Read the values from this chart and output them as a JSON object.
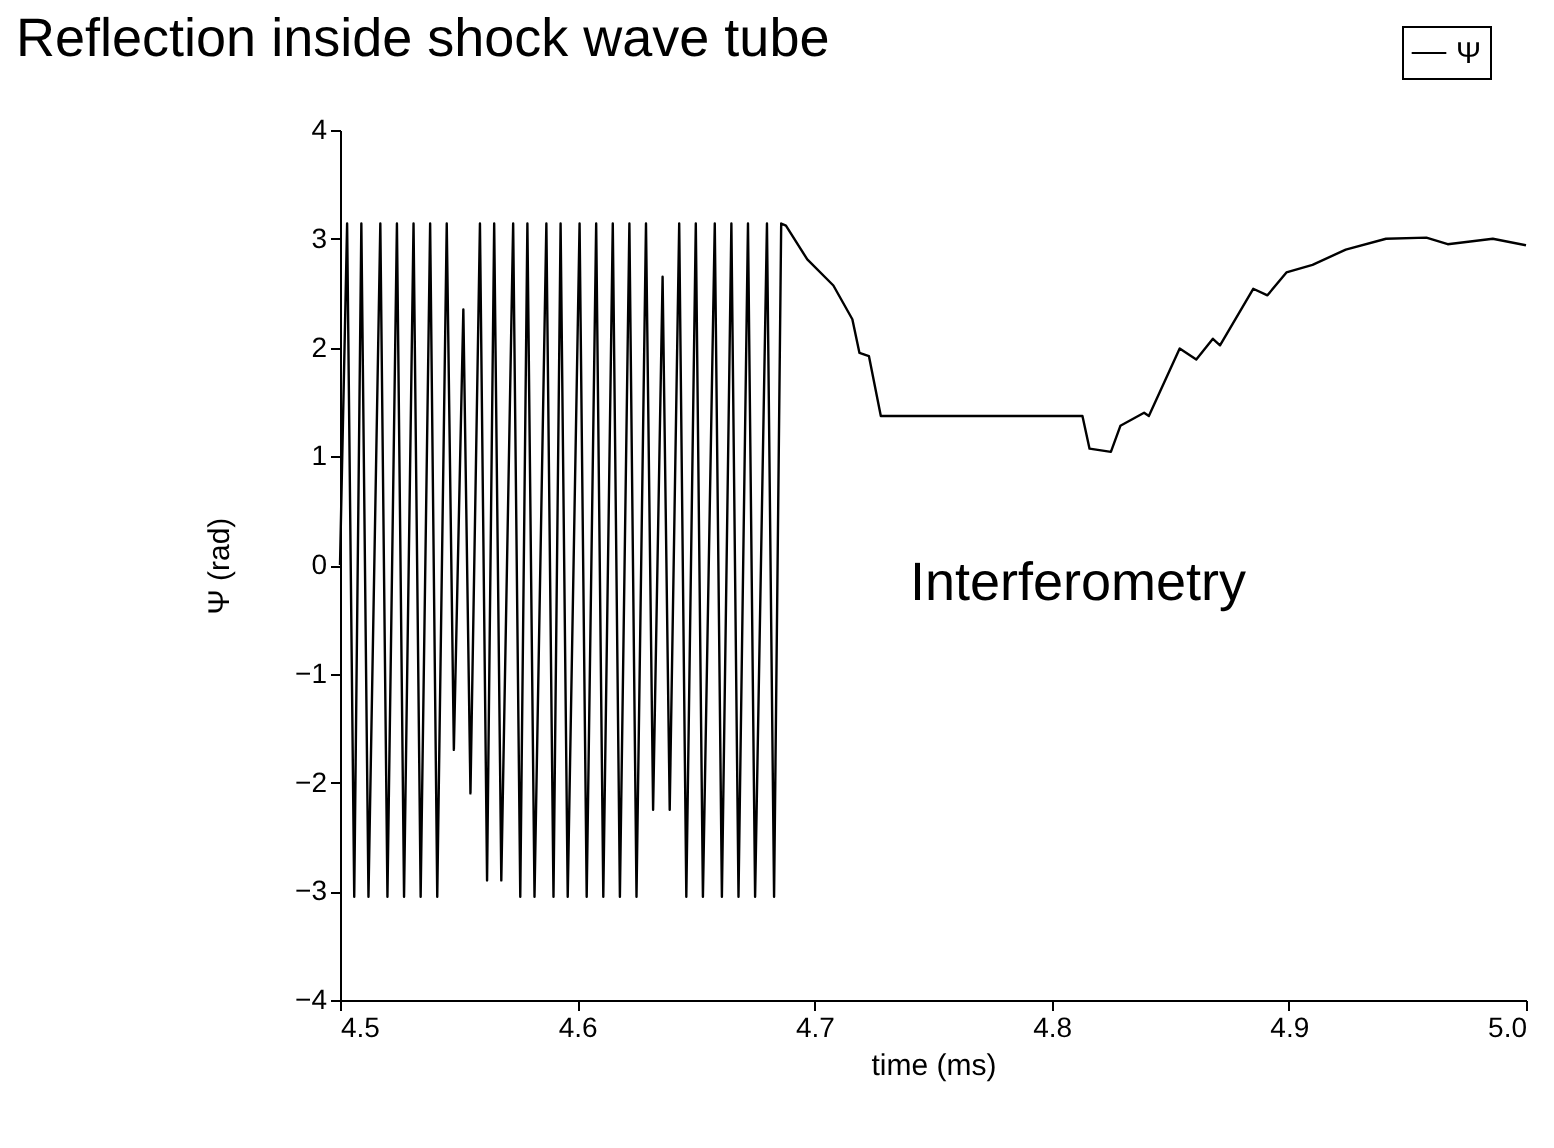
{
  "chart_data": {
    "type": "line",
    "title": "Reflection inside shock wave tube",
    "xlabel": "time (ms)",
    "ylabel": "Ψ (rad)",
    "annotations": [
      "Interferometry"
    ],
    "x": [
      4.5,
      4.503,
      4.506,
      4.509,
      4.512,
      4.517,
      4.52,
      4.524,
      4.527,
      4.531,
      4.534,
      4.538,
      4.541,
      4.545,
      4.548,
      4.552,
      4.555,
      4.559,
      4.562,
      4.565,
      4.568,
      4.573,
      4.576,
      4.579,
      4.582,
      4.587,
      4.59,
      4.593,
      4.596,
      4.601,
      4.604,
      4.608,
      4.611,
      4.615,
      4.618,
      4.622,
      4.625,
      4.629,
      4.632,
      4.636,
      4.639,
      4.643,
      4.646,
      4.65,
      4.653,
      4.658,
      4.661,
      4.665,
      4.668,
      4.672,
      4.675,
      4.68,
      4.683,
      4.686,
      4.688,
      4.697,
      4.708,
      4.716,
      4.719,
      4.723,
      4.728,
      4.813,
      4.816,
      4.825,
      4.829,
      4.839,
      4.841,
      4.854,
      4.861,
      4.868,
      4.871,
      4.885,
      4.891,
      4.899,
      4.91,
      4.924,
      4.941,
      4.958,
      4.967,
      4.986,
      5.0
    ],
    "series": [
      {
        "name": "Ψ",
        "color": "#000000",
        "values": [
          0,
          3.14,
          -3.05,
          3.14,
          -3.05,
          3.14,
          -3.05,
          3.14,
          -3.05,
          3.14,
          -3.05,
          3.14,
          -3.05,
          3.14,
          -1.7,
          2.35,
          -2.1,
          3.14,
          -2.9,
          3.14,
          -2.9,
          3.14,
          -3.05,
          3.14,
          -3.05,
          3.14,
          -3.05,
          3.14,
          -3.05,
          3.14,
          -3.05,
          3.14,
          -3.05,
          3.14,
          -3.05,
          3.14,
          -3.05,
          3.14,
          -2.25,
          2.65,
          -2.25,
          3.14,
          -3.05,
          3.14,
          -3.05,
          3.14,
          -3.05,
          3.14,
          -3.05,
          3.14,
          -3.05,
          3.14,
          -3.05,
          3.14,
          3.12,
          2.81,
          2.57,
          2.26,
          1.95,
          1.92,
          1.37,
          1.37,
          1.07,
          1.04,
          1.28,
          1.4,
          1.37,
          1.99,
          1.89,
          2.08,
          2.02,
          2.54,
          2.48,
          2.69,
          2.76,
          2.9,
          3.0,
          3.01,
          2.95,
          3.0,
          2.94
        ]
      }
    ],
    "xlim": [
      4.5,
      5.0
    ],
    "xticks": [
      4.5,
      4.6,
      4.7,
      4.8,
      4.9,
      {
        "value": 5.0,
        "label": "5.0"
      }
    ],
    "ylim": [
      -4,
      4
    ],
    "yticks": [
      -4,
      -3,
      -2,
      -1,
      0,
      1,
      2,
      3,
      4
    ],
    "grid": false,
    "legend": "top right",
    "marker": "none",
    "line_style": "solid"
  }
}
